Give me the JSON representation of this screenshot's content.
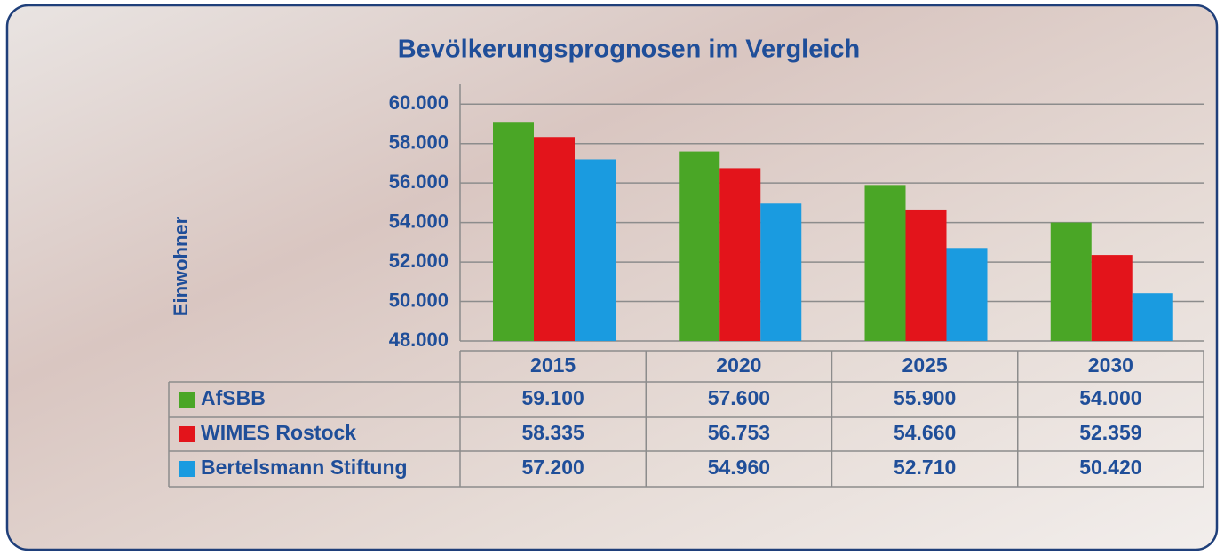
{
  "chart_data": {
    "type": "bar",
    "title": "Bevölkerungsprognosen im Vergleich",
    "y_label": "Einwohner",
    "categories": [
      "2015",
      "2020",
      "2025",
      "2030"
    ],
    "series": [
      {
        "name": "AfSBB",
        "color": "#4aa626",
        "values": [
          59100,
          57600,
          55900,
          54000
        ],
        "value_labels": [
          "59.100",
          "57.600",
          "55.900",
          "54.000"
        ]
      },
      {
        "name": "WIMES Rostock",
        "color": "#e3141b",
        "values": [
          58335,
          56753,
          54660,
          52359
        ],
        "value_labels": [
          "58.335",
          "56.753",
          "54.660",
          "52.359"
        ]
      },
      {
        "name": "Bertelsmann Stiftung",
        "color": "#1a9be0",
        "values": [
          57200,
          54960,
          52710,
          50420
        ],
        "value_labels": [
          "57.200",
          "54.960",
          "52.710",
          "50.420"
        ]
      }
    ],
    "ylim": [
      48000,
      61000
    ],
    "yticks": [
      {
        "value": 48000,
        "label": "48.000"
      },
      {
        "value": 50000,
        "label": "50.000"
      },
      {
        "value": 52000,
        "label": "52.000"
      },
      {
        "value": 54000,
        "label": "54.000"
      },
      {
        "value": 56000,
        "label": "56.000"
      },
      {
        "value": 58000,
        "label": "58.000"
      },
      {
        "value": 60000,
        "label": "60.000"
      }
    ],
    "grid": true
  }
}
